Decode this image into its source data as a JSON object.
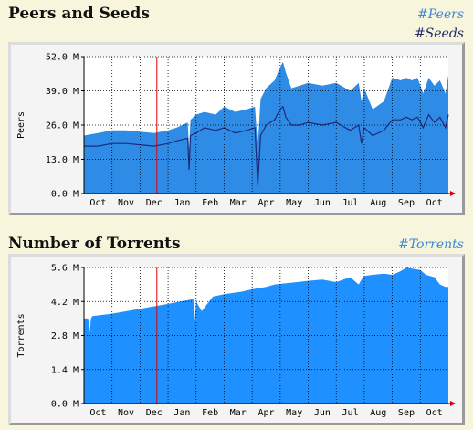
{
  "colors": {
    "background": "#f7f5db",
    "peers": "#2f8ce6",
    "seeds": "#1f2a7a",
    "torrents": "#1e90ff",
    "today_marker": "#e00000"
  },
  "sections": [
    {
      "title": "Peers and Seeds",
      "legend": [
        {
          "label": "#Peers",
          "color": "#3b87d9"
        },
        {
          "label": "#Seeds",
          "color": "#232a6b"
        }
      ]
    },
    {
      "title": "Number of Torrents",
      "legend": [
        {
          "label": "#Torrents",
          "color": "#3b87d9"
        }
      ]
    }
  ],
  "chart_data": [
    {
      "type": "area",
      "title": "Peers and Seeds",
      "ylabel": "Peers",
      "ylim": [
        0,
        52
      ],
      "ytick_labels": [
        "0.0 M",
        "13.0 M",
        "26.0 M",
        "39.0 M",
        "52.0 M"
      ],
      "yticks": [
        0,
        13,
        26,
        39,
        52
      ],
      "x_tick_labels": [
        "Oct",
        "Nov",
        "Dec",
        "Jan",
        "Feb",
        "Mar",
        "Apr",
        "May",
        "Jun",
        "Jul",
        "Aug",
        "Sep",
        "Oct"
      ],
      "xlim": [
        0,
        13
      ],
      "grid": true,
      "vline_x": 2.6,
      "series": [
        {
          "name": "#Peers",
          "style": "area",
          "x": [
            0,
            0.5,
            1,
            1.5,
            2,
            2.5,
            3,
            3.3,
            3.7,
            3.75,
            3.8,
            4,
            4.3,
            4.7,
            5,
            5.4,
            5.8,
            6.1,
            6.2,
            6.3,
            6.5,
            6.8,
            7,
            7.1,
            7.2,
            7.4,
            7.7,
            8,
            8.5,
            9,
            9.5,
            9.8,
            9.9,
            10,
            10.3,
            10.7,
            11,
            11.3,
            11.5,
            11.7,
            11.9,
            12.1,
            12.3,
            12.5,
            12.7,
            12.9,
            13
          ],
          "y": [
            22,
            23,
            24,
            24,
            23.5,
            23,
            24,
            25,
            27,
            17,
            28,
            30,
            31,
            30,
            33,
            31,
            32,
            33,
            18,
            36,
            40,
            43,
            48,
            50,
            46,
            40,
            41,
            42,
            41,
            42,
            39,
            42,
            35,
            40,
            32,
            35,
            44,
            43,
            44,
            43,
            44,
            38,
            44,
            41,
            43,
            38,
            45
          ]
        },
        {
          "name": "#Seeds",
          "style": "line",
          "x": [
            0,
            0.5,
            1,
            1.5,
            2,
            2.5,
            3,
            3.3,
            3.7,
            3.75,
            3.8,
            4,
            4.3,
            4.7,
            5,
            5.4,
            5.8,
            6.1,
            6.2,
            6.3,
            6.5,
            6.8,
            7,
            7.1,
            7.2,
            7.4,
            7.7,
            8,
            8.5,
            9,
            9.5,
            9.8,
            9.9,
            10,
            10.3,
            10.7,
            11,
            11.3,
            11.5,
            11.7,
            11.9,
            12.1,
            12.3,
            12.5,
            12.7,
            12.9,
            13
          ],
          "y": [
            18,
            18,
            19,
            19,
            18.5,
            18,
            19,
            20,
            21,
            9,
            22,
            23,
            25,
            24,
            25,
            23,
            24,
            25,
            3,
            22,
            26,
            28,
            32,
            33,
            29,
            26,
            26,
            27,
            26,
            27,
            24,
            26,
            19,
            25,
            22,
            24,
            28,
            28,
            29,
            28,
            29,
            25,
            30,
            27,
            29,
            25,
            30
          ]
        }
      ]
    },
    {
      "type": "area",
      "title": "Number of Torrents",
      "ylabel": "Torrents",
      "ylim": [
        0,
        5.6
      ],
      "ytick_labels": [
        "0.0 M",
        "1.4 M",
        "2.8 M",
        "4.2 M",
        "5.6 M"
      ],
      "yticks": [
        0,
        1.4,
        2.8,
        4.2,
        5.6
      ],
      "x_tick_labels": [
        "Oct",
        "Nov",
        "Dec",
        "Jan",
        "Feb",
        "Mar",
        "Apr",
        "May",
        "Jun",
        "Jul",
        "Aug",
        "Sep",
        "Oct"
      ],
      "xlim": [
        0,
        13
      ],
      "grid": true,
      "vline_x": 2.6,
      "series": [
        {
          "name": "#Torrents",
          "style": "area",
          "x": [
            0,
            0.15,
            0.2,
            0.25,
            0.3,
            1,
            2,
            3,
            3.9,
            3.95,
            4.0,
            4.2,
            4.6,
            5,
            5.6,
            6,
            6.5,
            6.8,
            7.2,
            7.6,
            8,
            8.5,
            9,
            9.5,
            9.8,
            9.9,
            10,
            10.3,
            10.7,
            11,
            11.3,
            11.5,
            11.7,
            12,
            12.2,
            12.5,
            12.7,
            12.9,
            13
          ],
          "y": [
            3.5,
            3.5,
            2.9,
            3.5,
            3.6,
            3.7,
            3.9,
            4.1,
            4.3,
            3.4,
            4.2,
            3.8,
            4.4,
            4.5,
            4.6,
            4.7,
            4.8,
            4.9,
            4.95,
            5.0,
            5.05,
            5.1,
            5.0,
            5.2,
            4.9,
            5.1,
            5.25,
            5.3,
            5.35,
            5.3,
            5.45,
            5.6,
            5.55,
            5.5,
            5.3,
            5.2,
            4.9,
            4.8,
            4.8
          ]
        }
      ]
    }
  ]
}
